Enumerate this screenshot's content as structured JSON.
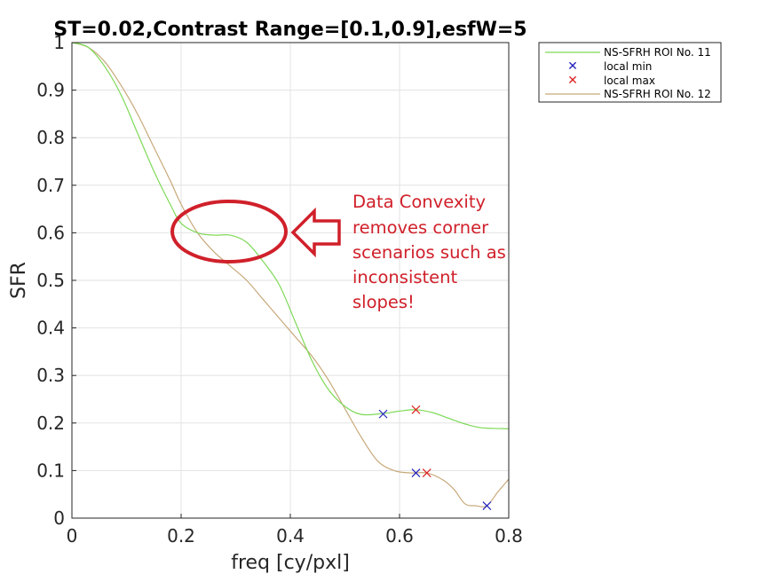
{
  "chart_data": {
    "type": "line",
    "title": "ST=0.02,Contrast Range=[0.1,0.9],esfW=5",
    "xlabel": "freq [cy/pxl]",
    "ylabel": "SFR",
    "xlim": [
      0,
      0.8
    ],
    "ylim": [
      0,
      1
    ],
    "x_ticks": [
      "0",
      "0.2",
      "0.4",
      "0.6",
      "0.8"
    ],
    "y_ticks": [
      "0",
      "0.1",
      "0.2",
      "0.3",
      "0.4",
      "0.5",
      "0.6",
      "0.7",
      "0.8",
      "0.9",
      "1"
    ],
    "grid": true,
    "legend_position": "outside top-right",
    "series": [
      {
        "name": "NS-SFRH ROI No. 11",
        "color": "#7ed957",
        "points": [
          [
            0,
            1
          ],
          [
            0.03,
            0.99
          ],
          [
            0.06,
            0.95
          ],
          [
            0.09,
            0.89
          ],
          [
            0.12,
            0.81
          ],
          [
            0.15,
            0.73
          ],
          [
            0.18,
            0.66
          ],
          [
            0.2,
            0.62
          ],
          [
            0.23,
            0.6
          ],
          [
            0.26,
            0.595
          ],
          [
            0.29,
            0.595
          ],
          [
            0.32,
            0.58
          ],
          [
            0.35,
            0.54
          ],
          [
            0.38,
            0.49
          ],
          [
            0.41,
            0.41
          ],
          [
            0.44,
            0.33
          ],
          [
            0.47,
            0.27
          ],
          [
            0.5,
            0.235
          ],
          [
            0.53,
            0.218
          ],
          [
            0.57,
            0.22
          ],
          [
            0.6,
            0.225
          ],
          [
            0.63,
            0.228
          ],
          [
            0.66,
            0.222
          ],
          [
            0.69,
            0.21
          ],
          [
            0.72,
            0.198
          ],
          [
            0.75,
            0.19
          ],
          [
            0.8,
            0.188
          ]
        ]
      },
      {
        "name": "local min",
        "color": "#2222bb",
        "marker": "x",
        "points": [
          [
            0.57,
            0.219
          ],
          [
            0.63,
            0.095
          ],
          [
            0.76,
            0.026
          ]
        ]
      },
      {
        "name": "local max",
        "color": "#dd2222",
        "marker": "x",
        "points": [
          [
            0.63,
            0.228
          ],
          [
            0.65,
            0.095
          ]
        ]
      },
      {
        "name": "NS-SFRH ROI No. 12",
        "color": "#c8a97a",
        "points": [
          [
            0,
            1
          ],
          [
            0.03,
            0.99
          ],
          [
            0.06,
            0.96
          ],
          [
            0.09,
            0.91
          ],
          [
            0.12,
            0.85
          ],
          [
            0.15,
            0.78
          ],
          [
            0.18,
            0.71
          ],
          [
            0.2,
            0.66
          ],
          [
            0.23,
            0.6
          ],
          [
            0.26,
            0.56
          ],
          [
            0.29,
            0.53
          ],
          [
            0.32,
            0.5
          ],
          [
            0.35,
            0.46
          ],
          [
            0.38,
            0.42
          ],
          [
            0.41,
            0.38
          ],
          [
            0.44,
            0.34
          ],
          [
            0.47,
            0.29
          ],
          [
            0.5,
            0.23
          ],
          [
            0.53,
            0.17
          ],
          [
            0.56,
            0.12
          ],
          [
            0.59,
            0.1
          ],
          [
            0.62,
            0.095
          ],
          [
            0.65,
            0.095
          ],
          [
            0.68,
            0.08
          ],
          [
            0.7,
            0.06
          ],
          [
            0.72,
            0.03
          ],
          [
            0.74,
            0.026
          ],
          [
            0.76,
            0.026
          ],
          [
            0.78,
            0.055
          ],
          [
            0.8,
            0.082
          ]
        ]
      }
    ],
    "annotation": {
      "text_lines": [
        "Data Convexity",
        "removes corner",
        "scenarios such as",
        "inconsistent",
        "slopes!"
      ],
      "color": "#d0202a"
    }
  }
}
